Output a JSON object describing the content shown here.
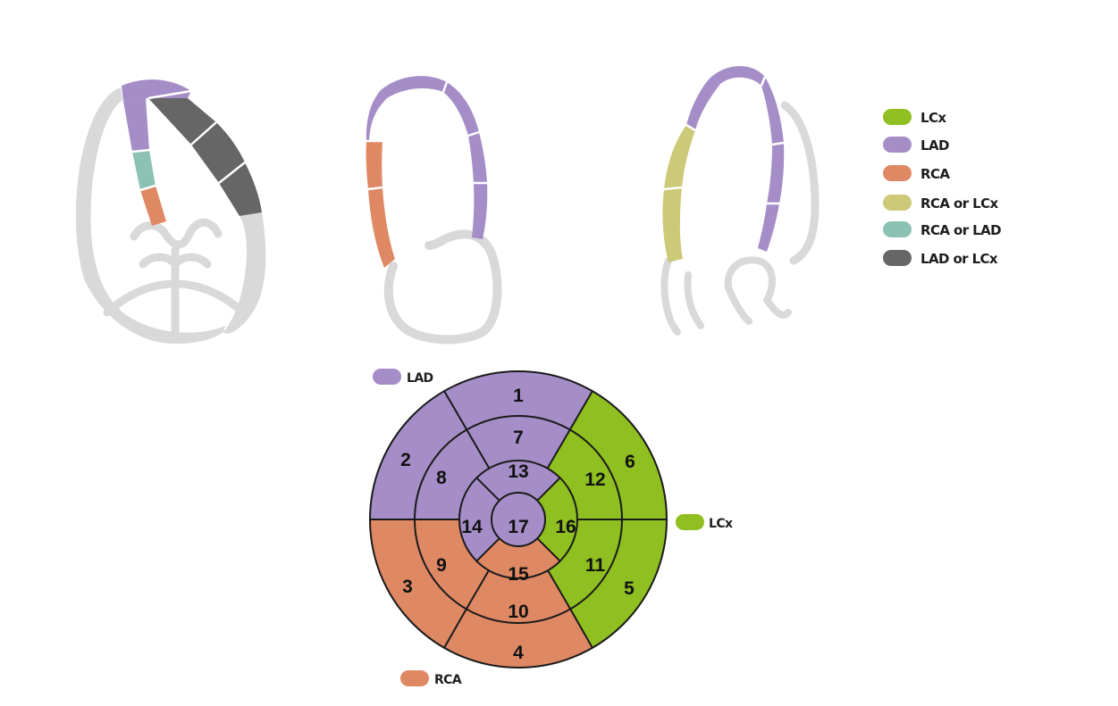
{
  "colors": {
    "LCx": "#8fbf20",
    "LAD": "#a58dc7",
    "RCA": "#df8864",
    "RCA_or_LCx": "#ccc978",
    "RCA_or_LAD": "#8cc2b4",
    "LAD_or_LCx": "#666666",
    "wall": "#d9d9d9",
    "line": "#1a1a1a"
  },
  "legend": [
    {
      "label": "LCx",
      "color": "#8fbf20"
    },
    {
      "label": "LAD",
      "color": "#a58dc7"
    },
    {
      "label": "RCA",
      "color": "#df8864"
    },
    {
      "label": "RCA or LCx",
      "color": "#ccc978"
    },
    {
      "label": "RCA or LAD",
      "color": "#8cc2b4"
    },
    {
      "label": "LAD or LCx",
      "color": "#666666"
    }
  ],
  "bullseye_labels": {
    "lad": "LAD",
    "lcx": "LCx",
    "rca": "RCA"
  },
  "segments": {
    "s1": "1",
    "s2": "2",
    "s3": "3",
    "s4": "4",
    "s5": "5",
    "s6": "6",
    "s7": "7",
    "s8": "8",
    "s9": "9",
    "s10": "10",
    "s11": "11",
    "s12": "12",
    "s13": "13",
    "s14": "14",
    "s15": "15",
    "s16": "16",
    "s17": "17"
  }
}
